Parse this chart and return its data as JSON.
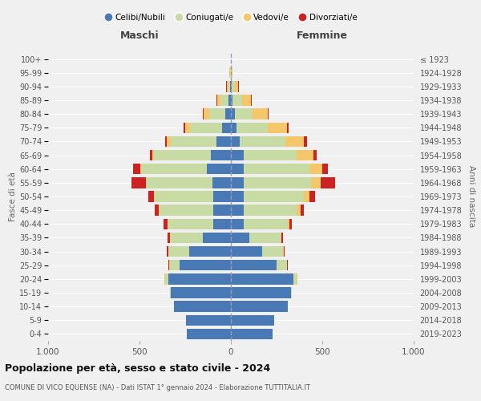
{
  "age_groups": [
    "0-4",
    "5-9",
    "10-14",
    "15-19",
    "20-24",
    "25-29",
    "30-34",
    "35-39",
    "40-44",
    "45-49",
    "50-54",
    "55-59",
    "60-64",
    "65-69",
    "70-74",
    "75-79",
    "80-84",
    "85-89",
    "90-94",
    "95-99",
    "100+"
  ],
  "birth_years": [
    "2019-2023",
    "2014-2018",
    "2009-2013",
    "2004-2008",
    "1999-2003",
    "1994-1998",
    "1989-1993",
    "1984-1988",
    "1979-1983",
    "1974-1978",
    "1969-1973",
    "1964-1968",
    "1959-1963",
    "1954-1958",
    "1949-1953",
    "1944-1948",
    "1939-1943",
    "1934-1938",
    "1929-1933",
    "1924-1928",
    "≤ 1923"
  ],
  "maschi": {
    "celibi": [
      240,
      245,
      310,
      330,
      340,
      280,
      230,
      155,
      95,
      95,
      95,
      100,
      130,
      110,
      80,
      50,
      30,
      15,
      5,
      2,
      0
    ],
    "coniugati": [
      0,
      0,
      0,
      5,
      20,
      55,
      110,
      175,
      250,
      295,
      320,
      360,
      360,
      310,
      250,
      175,
      90,
      40,
      8,
      2,
      0
    ],
    "vedovi": [
      0,
      0,
      0,
      0,
      2,
      2,
      2,
      2,
      2,
      3,
      5,
      5,
      5,
      10,
      20,
      25,
      30,
      20,
      10,
      3,
      0
    ],
    "divorziati": [
      0,
      0,
      0,
      0,
      2,
      5,
      10,
      15,
      20,
      25,
      30,
      80,
      40,
      15,
      10,
      8,
      5,
      3,
      2,
      0,
      0
    ]
  },
  "femmine": {
    "nubili": [
      230,
      235,
      310,
      330,
      340,
      250,
      170,
      100,
      70,
      70,
      70,
      70,
      70,
      70,
      50,
      30,
      20,
      10,
      5,
      2,
      0
    ],
    "coniugate": [
      0,
      0,
      0,
      5,
      20,
      55,
      115,
      170,
      240,
      290,
      330,
      370,
      360,
      290,
      250,
      170,
      100,
      50,
      15,
      2,
      0
    ],
    "vedove": [
      0,
      0,
      0,
      0,
      2,
      3,
      5,
      5,
      10,
      20,
      30,
      50,
      70,
      90,
      100,
      105,
      80,
      50,
      20,
      3,
      0
    ],
    "divorziate": [
      0,
      0,
      0,
      0,
      2,
      2,
      5,
      10,
      15,
      20,
      30,
      80,
      30,
      20,
      15,
      10,
      5,
      3,
      2,
      0,
      0
    ]
  },
  "colors": {
    "celibi": "#4a7ab5",
    "coniugati": "#c8dba4",
    "vedovi": "#f5c76a",
    "divorziati": "#cc2222"
  },
  "xlim": 1000,
  "title": "Popolazione per età, sesso e stato civile - 2024",
  "subtitle": "COMUNE DI VICO EQUENSE (NA) - Dati ISTAT 1° gennaio 2024 - Elaborazione TUTTITALIA.IT",
  "xlabel_left": "Maschi",
  "xlabel_right": "Femmine",
  "ylabel_left": "Fasce di età",
  "ylabel_right": "Anni di nascita",
  "bg_color": "#f0f0f0",
  "grid_color": "#ffffff"
}
